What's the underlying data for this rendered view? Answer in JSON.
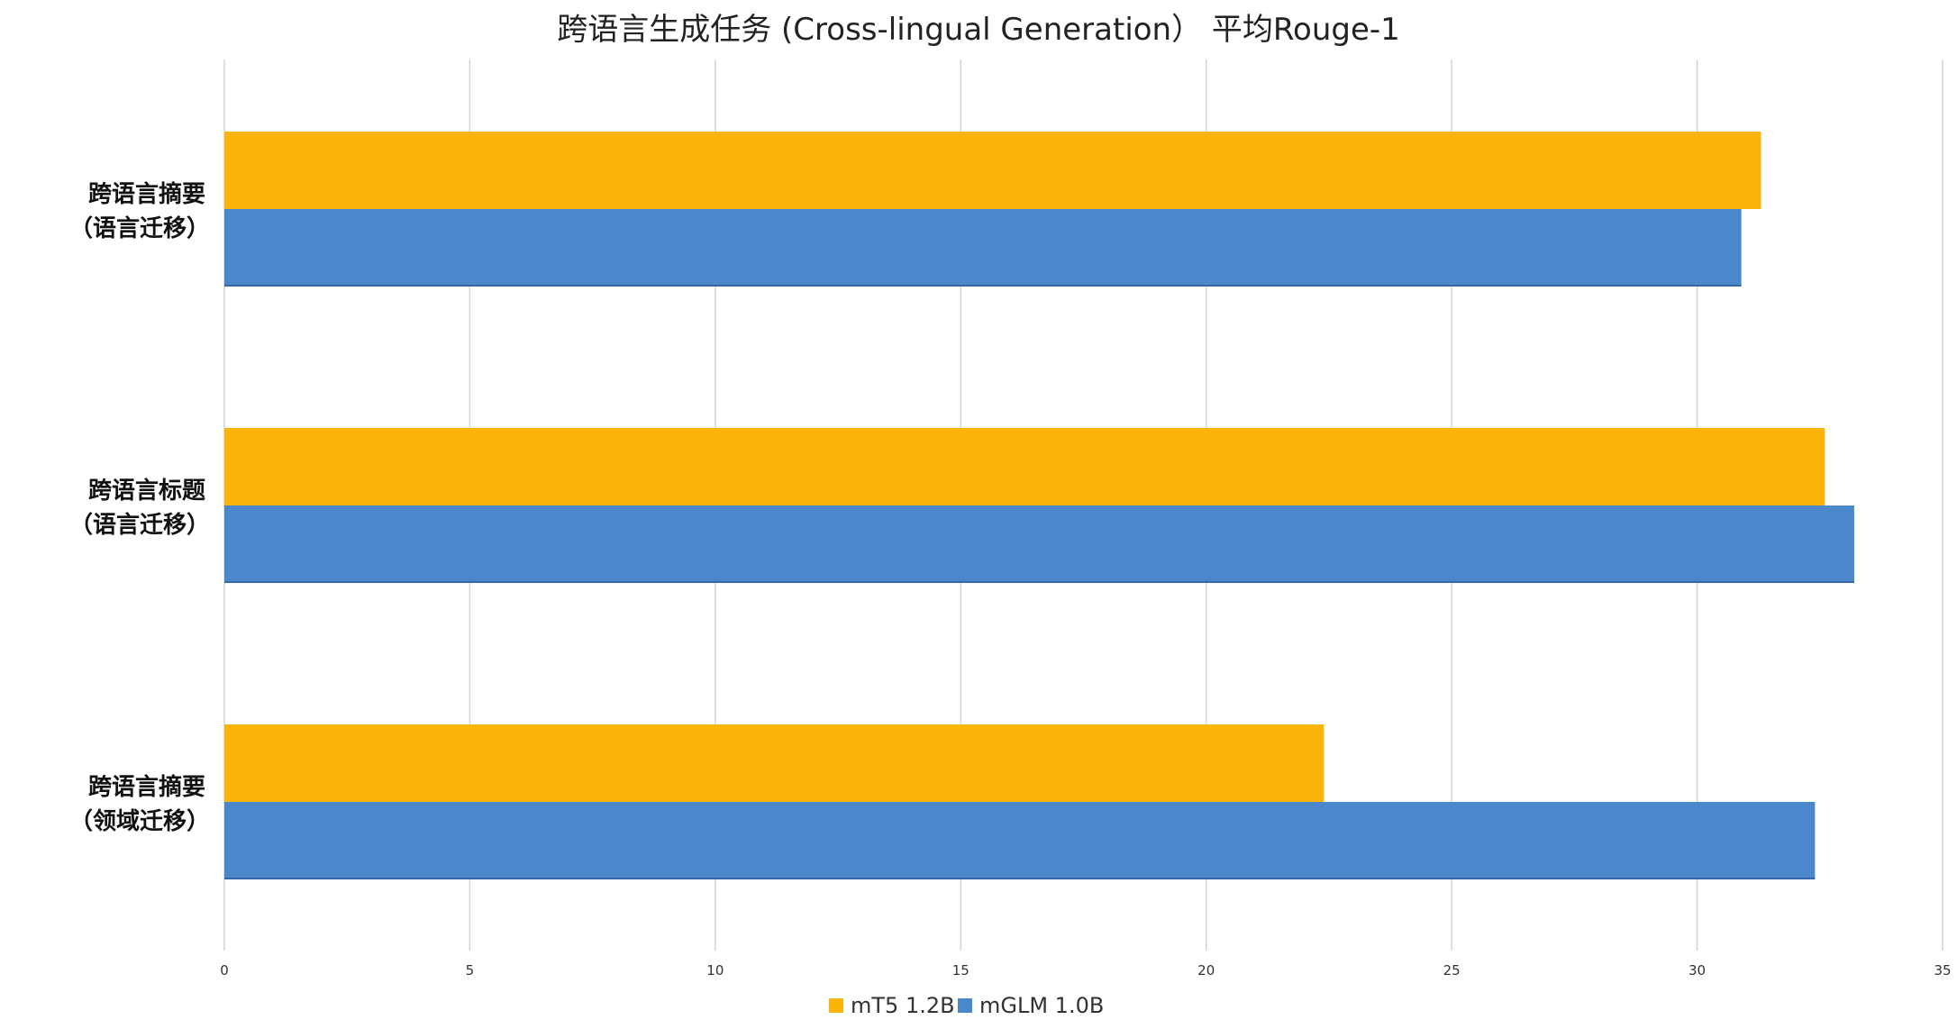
{
  "chart_data": {
    "type": "bar",
    "orientation": "horizontal",
    "title": "跨语言生成任务 (Cross-lingual Generation） 平均Rouge-1",
    "xlabel": "",
    "ylabel": "",
    "xlim": [
      0,
      35
    ],
    "xticks": [
      0,
      5,
      10,
      15,
      20,
      25,
      30,
      35
    ],
    "grid": true,
    "legend_position": "bottom",
    "categories": [
      {
        "line1": "跨语言摘要",
        "line2": "（语言迁移）"
      },
      {
        "line1": "跨语言标题",
        "line2": "（语言迁移）"
      },
      {
        "line1": "跨语言摘要",
        "line2": "（领域迁移）"
      }
    ],
    "series": [
      {
        "name": "mT5 1.2B",
        "color": "#FBB40A",
        "values": [
          31.3,
          32.6,
          22.4
        ]
      },
      {
        "name": "mGLM 1.0B",
        "color": "#4A87CB",
        "values": [
          30.9,
          33.2,
          32.4
        ]
      }
    ]
  }
}
